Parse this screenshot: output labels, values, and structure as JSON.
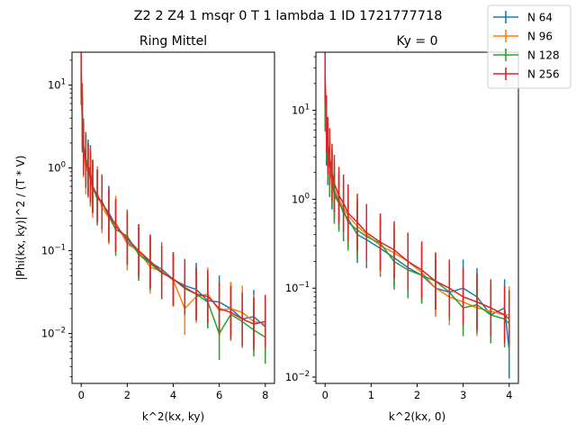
{
  "suptitle": "Z2 2 Z4 1 msqr 0 T 1 lambda 1 ID 1721777718",
  "legend": [
    {
      "label": "N 64",
      "color": "#1f77b4"
    },
    {
      "label": "N 96",
      "color": "#ff7f0e"
    },
    {
      "label": "N 128",
      "color": "#2ca02c"
    },
    {
      "label": "N 256",
      "color": "#d62728"
    }
  ],
  "chart_data": [
    {
      "type": "line",
      "title": "Ring Mittel",
      "xlabel": "k^2(kx, ky)",
      "ylabel": "|Phi(kx, ky)|^2 / (T * V)",
      "xlim": [
        -0.4,
        8.4
      ],
      "ylim": [
        0.0025,
        25
      ],
      "yscale": "log",
      "xticks": [
        0,
        2,
        4,
        6,
        8
      ],
      "yticks": [
        {
          "value": 0.01,
          "label": "10^-2"
        },
        {
          "value": 0.1,
          "label": "10^-1"
        },
        {
          "value": 1,
          "label": "10^0"
        },
        {
          "value": 10,
          "label": "10^1"
        }
      ],
      "error_bars": true,
      "series": [
        {
          "name": "N 64",
          "x": [
            0,
            0.05,
            0.1,
            0.2,
            0.3,
            0.4,
            0.5,
            0.7,
            0.9,
            1.2,
            1.5,
            2,
            2.5,
            3,
            3.5,
            4,
            4.5,
            5,
            5.5,
            6,
            6.5,
            7,
            7.5,
            8
          ],
          "y": [
            13,
            3.2,
            1.9,
            1.3,
            1.05,
            0.9,
            0.58,
            0.45,
            0.37,
            0.29,
            0.2,
            0.13,
            0.095,
            0.072,
            0.06,
            0.045,
            0.038,
            0.034,
            0.025,
            0.024,
            0.02,
            0.015,
            0.016,
            0.012
          ]
        },
        {
          "name": "N 96",
          "x": [
            0,
            0.05,
            0.1,
            0.2,
            0.3,
            0.4,
            0.5,
            0.7,
            0.9,
            1.2,
            1.5,
            2,
            2.5,
            3,
            3.5,
            4,
            4.5,
            5,
            5.5,
            6,
            6.5,
            7,
            7.5,
            8
          ],
          "y": [
            12,
            4,
            1.6,
            1.0,
            0.9,
            0.7,
            0.52,
            0.5,
            0.34,
            0.25,
            0.22,
            0.12,
            0.1,
            0.063,
            0.057,
            0.044,
            0.02,
            0.028,
            0.03,
            0.019,
            0.02,
            0.018,
            0.014,
            0.013
          ]
        },
        {
          "name": "N 128",
          "x": [
            0,
            0.05,
            0.1,
            0.2,
            0.3,
            0.4,
            0.5,
            0.7,
            0.9,
            1.2,
            1.5,
            2,
            2.5,
            3,
            3.5,
            4,
            4.5,
            5,
            5.5,
            6,
            6.5,
            7,
            7.5,
            8
          ],
          "y": [
            12,
            5,
            1.8,
            1.3,
            1.0,
            0.75,
            0.6,
            0.42,
            0.4,
            0.26,
            0.18,
            0.15,
            0.09,
            0.07,
            0.054,
            0.046,
            0.035,
            0.03,
            0.024,
            0.01,
            0.017,
            0.014,
            0.011,
            0.009
          ]
        },
        {
          "name": "N 256",
          "x": [
            0,
            0.05,
            0.1,
            0.2,
            0.3,
            0.4,
            0.5,
            0.7,
            0.9,
            1.2,
            1.5,
            2,
            2.5,
            3,
            3.5,
            4,
            4.5,
            5,
            5.5,
            6,
            6.5,
            7,
            7.5,
            8
          ],
          "y": [
            15,
            3.5,
            1.7,
            1.2,
            0.95,
            0.8,
            0.6,
            0.46,
            0.38,
            0.27,
            0.2,
            0.14,
            0.1,
            0.075,
            0.055,
            0.045,
            0.036,
            0.03,
            0.028,
            0.02,
            0.018,
            0.015,
            0.013,
            0.014
          ]
        }
      ]
    },
    {
      "type": "line",
      "title": "Ky = 0",
      "xlabel": "k^2(kx, 0)",
      "ylabel": "",
      "xlim": [
        -0.2,
        4.2
      ],
      "ylim": [
        0.0085,
        45
      ],
      "yscale": "log",
      "xticks": [
        0,
        1,
        2,
        3,
        4
      ],
      "yticks": [
        {
          "value": 0.01,
          "label": "10^-2"
        },
        {
          "value": 0.1,
          "label": "10^-1"
        },
        {
          "value": 1,
          "label": "10^0"
        },
        {
          "value": 10,
          "label": "10^1"
        }
      ],
      "error_bars": true,
      "series": [
        {
          "name": "N 64",
          "x": [
            0,
            0.03,
            0.06,
            0.1,
            0.15,
            0.2,
            0.3,
            0.4,
            0.5,
            0.7,
            0.9,
            1.2,
            1.5,
            1.8,
            2.1,
            2.4,
            2.7,
            3,
            3.3,
            3.6,
            3.9,
            4
          ],
          "y": [
            13,
            5,
            3,
            2.2,
            1.6,
            1.2,
            0.95,
            0.7,
            0.6,
            0.4,
            0.35,
            0.28,
            0.22,
            0.17,
            0.14,
            0.1,
            0.09,
            0.1,
            0.08,
            0.05,
            0.06,
            0.02
          ]
        },
        {
          "name": "N 96",
          "x": [
            0,
            0.03,
            0.06,
            0.1,
            0.15,
            0.2,
            0.3,
            0.4,
            0.5,
            0.7,
            0.9,
            1.2,
            1.5,
            1.8,
            2.1,
            2.4,
            2.7,
            3,
            3.3,
            3.6,
            3.9,
            4
          ],
          "y": [
            14,
            6,
            3.5,
            2.4,
            1.8,
            1.3,
            1.0,
            0.8,
            0.65,
            0.5,
            0.4,
            0.3,
            0.25,
            0.2,
            0.15,
            0.1,
            0.08,
            0.07,
            0.06,
            0.055,
            0.05,
            0.05
          ]
        },
        {
          "name": "N 128",
          "x": [
            0,
            0.03,
            0.06,
            0.1,
            0.15,
            0.2,
            0.3,
            0.4,
            0.5,
            0.7,
            0.9,
            1.2,
            1.5,
            1.8,
            2.1,
            2.4,
            2.7,
            3,
            3.3,
            3.6,
            3.9,
            4
          ],
          "y": [
            12,
            5.5,
            3.2,
            2.3,
            1.7,
            1.1,
            0.9,
            0.75,
            0.55,
            0.45,
            0.38,
            0.32,
            0.2,
            0.16,
            0.14,
            0.12,
            0.09,
            0.06,
            0.065,
            0.05,
            0.045,
            0.04
          ]
        },
        {
          "name": "N 256",
          "x": [
            0,
            0.03,
            0.06,
            0.1,
            0.15,
            0.2,
            0.3,
            0.4,
            0.5,
            0.7,
            0.9,
            1.2,
            1.5,
            1.8,
            2.1,
            2.4,
            2.7,
            3,
            3.3,
            3.6,
            3.9,
            4
          ],
          "y": [
            25,
            7,
            4,
            3,
            2,
            1.5,
            1.1,
            0.9,
            0.7,
            0.55,
            0.42,
            0.33,
            0.27,
            0.2,
            0.16,
            0.12,
            0.1,
            0.08,
            0.07,
            0.06,
            0.05,
            0.045
          ]
        }
      ]
    }
  ]
}
